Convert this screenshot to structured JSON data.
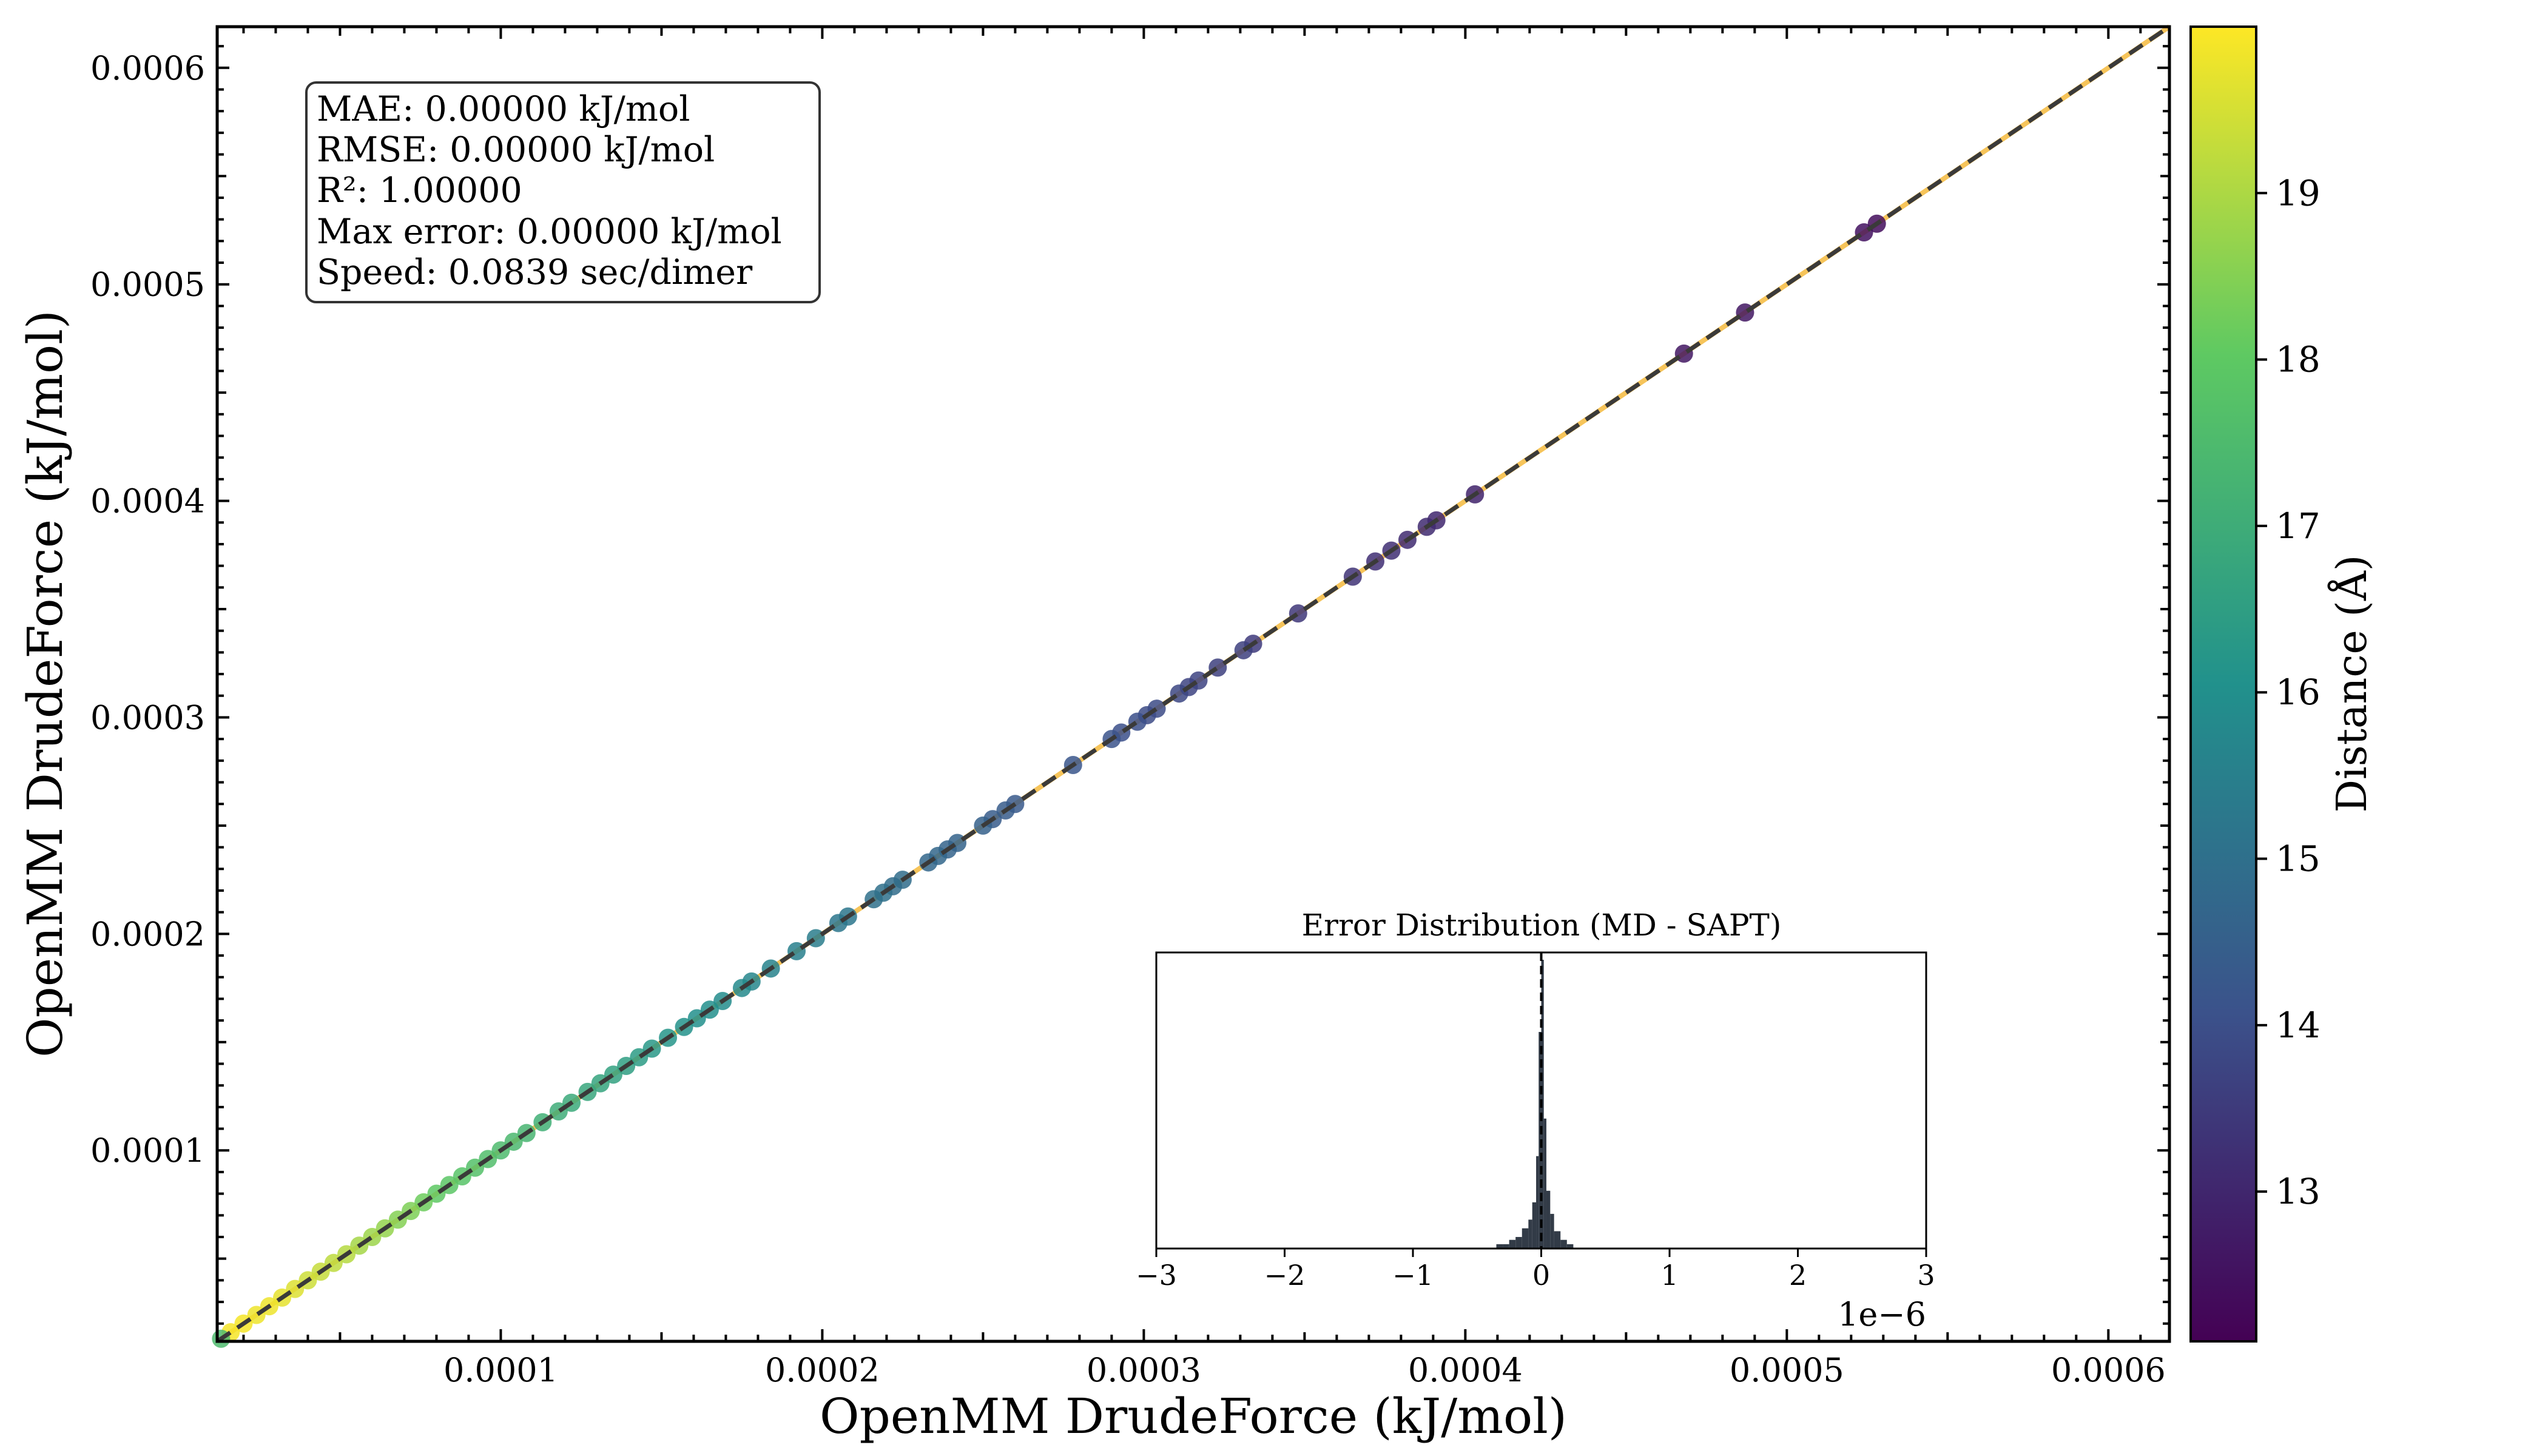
{
  "chart_data": {
    "type": "scatter",
    "xlabel": "OpenMM DrudeForce (kJ/mol)",
    "ylabel": "OpenMM DrudeForce (kJ/mol)",
    "xlim": [
      1.18e-05,
      0.000619
    ],
    "ylim": [
      1.18e-05,
      0.000619
    ],
    "x_ticks": [
      {
        "value": 0.0001,
        "label": "0.0001"
      },
      {
        "value": 0.0002,
        "label": "0.0002"
      },
      {
        "value": 0.0003,
        "label": "0.0003"
      },
      {
        "value": 0.0004,
        "label": "0.0004"
      },
      {
        "value": 0.0005,
        "label": "0.0005"
      },
      {
        "value": 0.0006,
        "label": "0.0006"
      }
    ],
    "y_ticks": [
      {
        "value": 0.0001,
        "label": "0.0001"
      },
      {
        "value": 0.0002,
        "label": "0.0002"
      },
      {
        "value": 0.0003,
        "label": "0.0003"
      },
      {
        "value": 0.0004,
        "label": "0.0004"
      },
      {
        "value": 0.0005,
        "label": "0.0005"
      },
      {
        "value": 0.0006,
        "label": "0.0006"
      }
    ],
    "reference_line": {
      "style": "dashed",
      "color": "#3a3a3a",
      "from": [
        1.18e-05,
        1.18e-05
      ],
      "to": [
        0.000619,
        0.000619
      ]
    },
    "fit_line": {
      "color": "#f6c45a"
    },
    "points": [
      {
        "x": 0.000528,
        "y": 0.000528,
        "d": 12.4
      },
      {
        "x": 0.000524,
        "y": 0.000524,
        "d": 12.5
      },
      {
        "x": 0.000487,
        "y": 0.000487,
        "d": 12.6
      },
      {
        "x": 0.000468,
        "y": 0.000468,
        "d": 12.6
      },
      {
        "x": 0.000403,
        "y": 0.000403,
        "d": 12.9
      },
      {
        "x": 0.000391,
        "y": 0.000391,
        "d": 13.0
      },
      {
        "x": 0.000388,
        "y": 0.000388,
        "d": 13.1
      },
      {
        "x": 0.000382,
        "y": 0.000382,
        "d": 13.1
      },
      {
        "x": 0.000377,
        "y": 0.000377,
        "d": 13.2
      },
      {
        "x": 0.000372,
        "y": 0.000372,
        "d": 13.2
      },
      {
        "x": 0.000365,
        "y": 0.000365,
        "d": 13.3
      },
      {
        "x": 0.000348,
        "y": 0.000348,
        "d": 13.4
      },
      {
        "x": 0.000334,
        "y": 0.000334,
        "d": 13.5
      },
      {
        "x": 0.000331,
        "y": 0.000331,
        "d": 13.6
      },
      {
        "x": 0.000323,
        "y": 0.000323,
        "d": 13.6
      },
      {
        "x": 0.000317,
        "y": 0.000317,
        "d": 13.7
      },
      {
        "x": 0.000314,
        "y": 0.000314,
        "d": 13.7
      },
      {
        "x": 0.000311,
        "y": 0.000311,
        "d": 13.8
      },
      {
        "x": 0.000304,
        "y": 0.000304,
        "d": 13.9
      },
      {
        "x": 0.000301,
        "y": 0.000301,
        "d": 13.9
      },
      {
        "x": 0.000298,
        "y": 0.000298,
        "d": 14.0
      },
      {
        "x": 0.000293,
        "y": 0.000293,
        "d": 14.0
      },
      {
        "x": 0.00029,
        "y": 0.00029,
        "d": 14.1
      },
      {
        "x": 0.000278,
        "y": 0.000278,
        "d": 14.2
      },
      {
        "x": 0.00026,
        "y": 0.00026,
        "d": 14.3
      },
      {
        "x": 0.000257,
        "y": 0.000257,
        "d": 14.4
      },
      {
        "x": 0.000253,
        "y": 0.000253,
        "d": 14.4
      },
      {
        "x": 0.00025,
        "y": 0.00025,
        "d": 14.5
      },
      {
        "x": 0.000242,
        "y": 0.000242,
        "d": 14.6
      },
      {
        "x": 0.000239,
        "y": 0.000239,
        "d": 14.6
      },
      {
        "x": 0.000236,
        "y": 0.000236,
        "d": 14.7
      },
      {
        "x": 0.000233,
        "y": 0.000233,
        "d": 14.7
      },
      {
        "x": 0.000225,
        "y": 0.000225,
        "d": 14.9
      },
      {
        "x": 0.000222,
        "y": 0.000222,
        "d": 14.9
      },
      {
        "x": 0.000219,
        "y": 0.000219,
        "d": 15.0
      },
      {
        "x": 0.000216,
        "y": 0.000216,
        "d": 15.0
      },
      {
        "x": 0.000208,
        "y": 0.000208,
        "d": 15.2
      },
      {
        "x": 0.000205,
        "y": 0.000205,
        "d": 15.2
      },
      {
        "x": 0.000198,
        "y": 0.000198,
        "d": 15.4
      },
      {
        "x": 0.000192,
        "y": 0.000192,
        "d": 15.5
      },
      {
        "x": 0.000184,
        "y": 0.000184,
        "d": 15.6
      },
      {
        "x": 0.000178,
        "y": 0.000178,
        "d": 15.7
      },
      {
        "x": 0.000175,
        "y": 0.000175,
        "d": 15.8
      },
      {
        "x": 0.000169,
        "y": 0.000169,
        "d": 15.9
      },
      {
        "x": 0.000165,
        "y": 0.000165,
        "d": 16.0
      },
      {
        "x": 0.000161,
        "y": 0.000161,
        "d": 16.0
      },
      {
        "x": 0.000157,
        "y": 0.000157,
        "d": 16.1
      },
      {
        "x": 0.000152,
        "y": 0.000152,
        "d": 16.2
      },
      {
        "x": 0.000147,
        "y": 0.000147,
        "d": 16.3
      },
      {
        "x": 0.000143,
        "y": 0.000143,
        "d": 16.4
      },
      {
        "x": 0.000139,
        "y": 0.000139,
        "d": 16.5
      },
      {
        "x": 0.000135,
        "y": 0.000135,
        "d": 16.6
      },
      {
        "x": 0.000131,
        "y": 0.000131,
        "d": 16.7
      },
      {
        "x": 0.000127,
        "y": 0.000127,
        "d": 16.8
      },
      {
        "x": 0.000122,
        "y": 0.000122,
        "d": 16.9
      },
      {
        "x": 0.000118,
        "y": 0.000118,
        "d": 17.0
      },
      {
        "x": 0.000113,
        "y": 0.000113,
        "d": 17.1
      },
      {
        "x": 0.000108,
        "y": 0.000108,
        "d": 17.3
      },
      {
        "x": 0.000104,
        "y": 0.000104,
        "d": 17.4
      },
      {
        "x": 0.0001,
        "y": 0.0001,
        "d": 17.5
      },
      {
        "x": 9.6e-05,
        "y": 9.6e-05,
        "d": 17.6
      },
      {
        "x": 9.2e-05,
        "y": 9.2e-05,
        "d": 17.7
      },
      {
        "x": 8.8e-05,
        "y": 8.8e-05,
        "d": 17.8
      },
      {
        "x": 8.4e-05,
        "y": 8.4e-05,
        "d": 17.9
      },
      {
        "x": 8e-05,
        "y": 8e-05,
        "d": 18.0
      },
      {
        "x": 7.6e-05,
        "y": 7.6e-05,
        "d": 18.2
      },
      {
        "x": 7.2e-05,
        "y": 7.2e-05,
        "d": 18.4
      },
      {
        "x": 6.8e-05,
        "y": 6.8e-05,
        "d": 18.5
      },
      {
        "x": 6.4e-05,
        "y": 6.4e-05,
        "d": 18.7
      },
      {
        "x": 6e-05,
        "y": 6e-05,
        "d": 18.8
      },
      {
        "x": 5.6e-05,
        "y": 5.6e-05,
        "d": 18.9
      },
      {
        "x": 5.2e-05,
        "y": 5.2e-05,
        "d": 19.1
      },
      {
        "x": 4.8e-05,
        "y": 4.8e-05,
        "d": 19.2
      },
      {
        "x": 4.4e-05,
        "y": 4.4e-05,
        "d": 19.3
      },
      {
        "x": 4e-05,
        "y": 4e-05,
        "d": 19.4
      },
      {
        "x": 3.6e-05,
        "y": 3.6e-05,
        "d": 19.6
      },
      {
        "x": 3.2e-05,
        "y": 3.2e-05,
        "d": 19.7
      },
      {
        "x": 2.8e-05,
        "y": 2.8e-05,
        "d": 19.8
      },
      {
        "x": 2.4e-05,
        "y": 2.4e-05,
        "d": 19.8
      },
      {
        "x": 2e-05,
        "y": 2e-05,
        "d": 19.9
      },
      {
        "x": 1.6e-05,
        "y": 1.6e-05,
        "d": 19.9
      },
      {
        "x": 1.3e-05,
        "y": 1.3e-05,
        "d": 17.5
      }
    ],
    "colorbar": {
      "label": "Distance (Å)",
      "colormap": "viridis",
      "range": [
        12.1,
        20.0
      ],
      "ticks": [
        {
          "value": 13,
          "label": "13"
        },
        {
          "value": 14,
          "label": "14"
        },
        {
          "value": 15,
          "label": "15"
        },
        {
          "value": 16,
          "label": "16"
        },
        {
          "value": 17,
          "label": "17"
        },
        {
          "value": 18,
          "label": "18"
        },
        {
          "value": 19,
          "label": "19"
        }
      ],
      "stops": [
        "#440154",
        "#3b528b",
        "#21918c",
        "#5ec962",
        "#fde725"
      ]
    },
    "stats_box": {
      "lines": [
        "MAE: 0.00000 kJ/mol",
        "RMSE: 0.00000 kJ/mol",
        "R²: 1.00000",
        "Max error: 0.00000 kJ/mol",
        "Speed: 0.0839 sec/dimer"
      ]
    },
    "inset": {
      "type": "histogram",
      "title": "Error Distribution (MD - SAPT)",
      "xlim": [
        -3,
        3
      ],
      "x_ticks": [
        {
          "value": -3,
          "label": "−3"
        },
        {
          "value": -2,
          "label": "−2"
        },
        {
          "value": -1,
          "label": "−1"
        },
        {
          "value": 0,
          "label": "0"
        },
        {
          "value": 1,
          "label": "1"
        },
        {
          "value": 2,
          "label": "2"
        },
        {
          "value": 3,
          "label": "3"
        }
      ],
      "offset_label": "1e−6",
      "zero_line": {
        "style": "dashed",
        "x": 0
      },
      "bins": [
        {
          "x0": -0.35,
          "x1": -0.3,
          "h": 0.015
        },
        {
          "x0": -0.3,
          "x1": -0.25,
          "h": 0.015
        },
        {
          "x0": -0.25,
          "x1": -0.2,
          "h": 0.03
        },
        {
          "x0": -0.2,
          "x1": -0.15,
          "h": 0.04
        },
        {
          "x0": -0.15,
          "x1": -0.1,
          "h": 0.07
        },
        {
          "x0": -0.1,
          "x1": -0.07,
          "h": 0.1
        },
        {
          "x0": -0.07,
          "x1": -0.04,
          "h": 0.16
        },
        {
          "x0": -0.04,
          "x1": -0.02,
          "h": 0.32
        },
        {
          "x0": -0.02,
          "x1": 0.0,
          "h": 0.75
        },
        {
          "x0": 0.0,
          "x1": 0.02,
          "h": 1.0
        },
        {
          "x0": 0.02,
          "x1": 0.04,
          "h": 0.45
        },
        {
          "x0": 0.04,
          "x1": 0.07,
          "h": 0.2
        },
        {
          "x0": 0.07,
          "x1": 0.1,
          "h": 0.12
        },
        {
          "x0": 0.1,
          "x1": 0.15,
          "h": 0.06
        },
        {
          "x0": 0.15,
          "x1": 0.2,
          "h": 0.03
        },
        {
          "x0": 0.2,
          "x1": 0.25,
          "h": 0.015
        }
      ]
    }
  }
}
